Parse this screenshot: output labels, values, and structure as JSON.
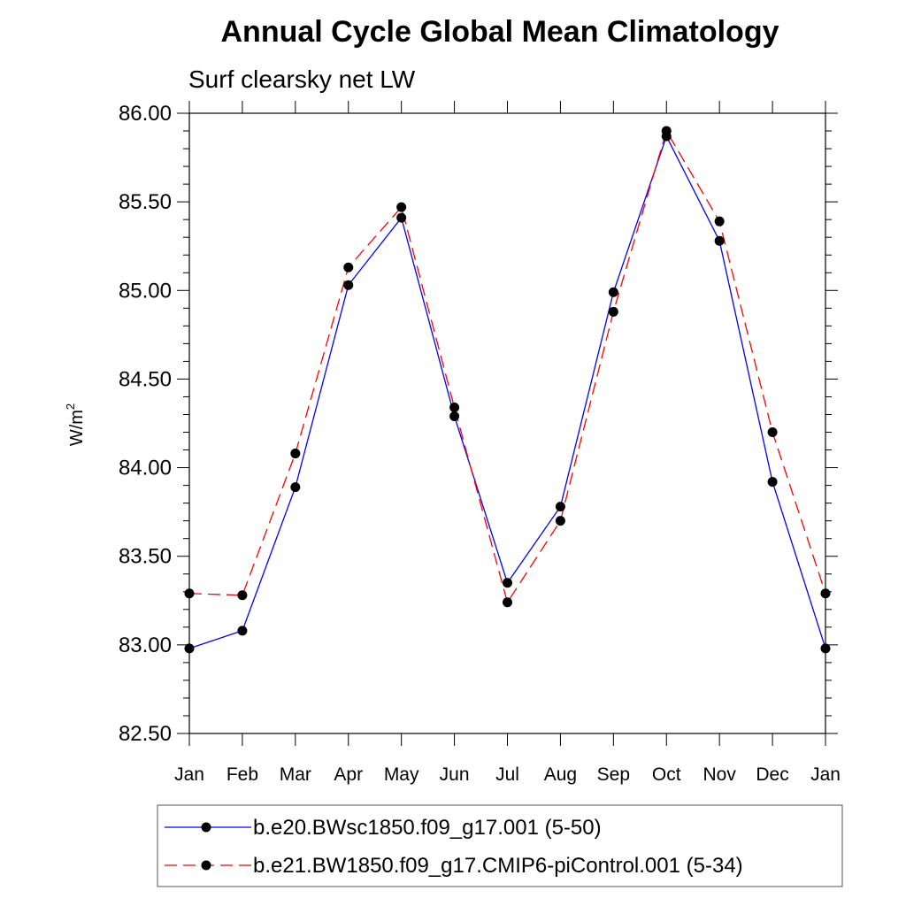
{
  "chart_data": {
    "type": "line",
    "title": "Annual Cycle Global Mean Climatology",
    "subtitle": "Surf clearsky net LW",
    "ylabel_base": "W/m",
    "ylabel_sup": "2",
    "xlabel": "",
    "categories": [
      "Jan",
      "Feb",
      "Mar",
      "Apr",
      "May",
      "Jun",
      "Jul",
      "Aug",
      "Sep",
      "Oct",
      "Nov",
      "Dec",
      "Jan"
    ],
    "ylim": [
      82.5,
      86.0
    ],
    "yticks": [
      82.5,
      83.0,
      83.5,
      84.0,
      84.5,
      85.0,
      85.5,
      86.0
    ],
    "ytick_labels": [
      "82.50",
      "83.00",
      "83.50",
      "84.00",
      "84.50",
      "85.00",
      "85.50",
      "86.00"
    ],
    "grid": false,
    "legend_position": "bottom",
    "series": [
      {
        "name": "b.e20.BWsc1850.f09_g17.001 (5-50)",
        "color": "#0000ff",
        "style": "solid",
        "values": [
          82.98,
          83.08,
          83.89,
          85.03,
          85.41,
          84.29,
          83.35,
          83.78,
          84.99,
          85.87,
          85.28,
          83.92,
          82.98
        ]
      },
      {
        "name": "b.e21.BW1850.f09_g17.CMIP6-piControl.001 (5-34)",
        "color": "#ff0000",
        "style": "dashed",
        "values": [
          83.29,
          83.28,
          84.08,
          85.13,
          85.47,
          84.34,
          83.24,
          83.7,
          84.88,
          85.9,
          85.39,
          84.2,
          83.29
        ]
      }
    ]
  }
}
